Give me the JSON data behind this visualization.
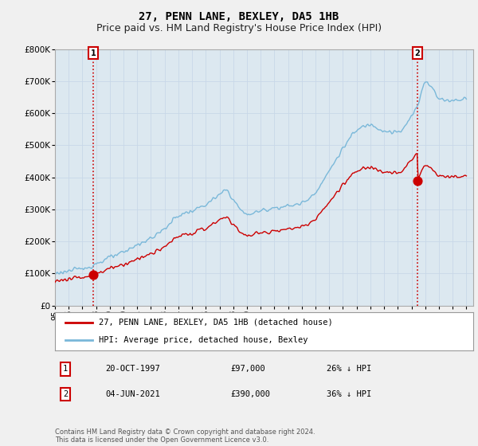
{
  "title": "27, PENN LANE, BEXLEY, DA5 1HB",
  "subtitle": "Price paid vs. HM Land Registry's House Price Index (HPI)",
  "ylim": [
    0,
    800000
  ],
  "yticks": [
    0,
    100000,
    200000,
    300000,
    400000,
    500000,
    600000,
    700000,
    800000
  ],
  "ytick_labels": [
    "£0",
    "£100K",
    "£200K",
    "£300K",
    "£400K",
    "£500K",
    "£600K",
    "£700K",
    "£800K"
  ],
  "sale1_date": 1997.8,
  "sale1_price": 97000,
  "sale2_date": 2021.42,
  "sale2_price": 390000,
  "hpi_color": "#7ab8d9",
  "sold_color": "#cc0000",
  "grid_color": "#c8d8e8",
  "background_color": "#f0f0f0",
  "plot_background": "#dce8f0",
  "legend_entry1": "27, PENN LANE, BEXLEY, DA5 1HB (detached house)",
  "legend_entry2": "HPI: Average price, detached house, Bexley",
  "table_row1": [
    "1",
    "20-OCT-1997",
    "£97,000",
    "26% ↓ HPI"
  ],
  "table_row2": [
    "2",
    "04-JUN-2021",
    "£390,000",
    "36% ↓ HPI"
  ],
  "footer": "Contains HM Land Registry data © Crown copyright and database right 2024.\nThis data is licensed under the Open Government Licence v3.0.",
  "title_fontsize": 10,
  "subtitle_fontsize": 9
}
